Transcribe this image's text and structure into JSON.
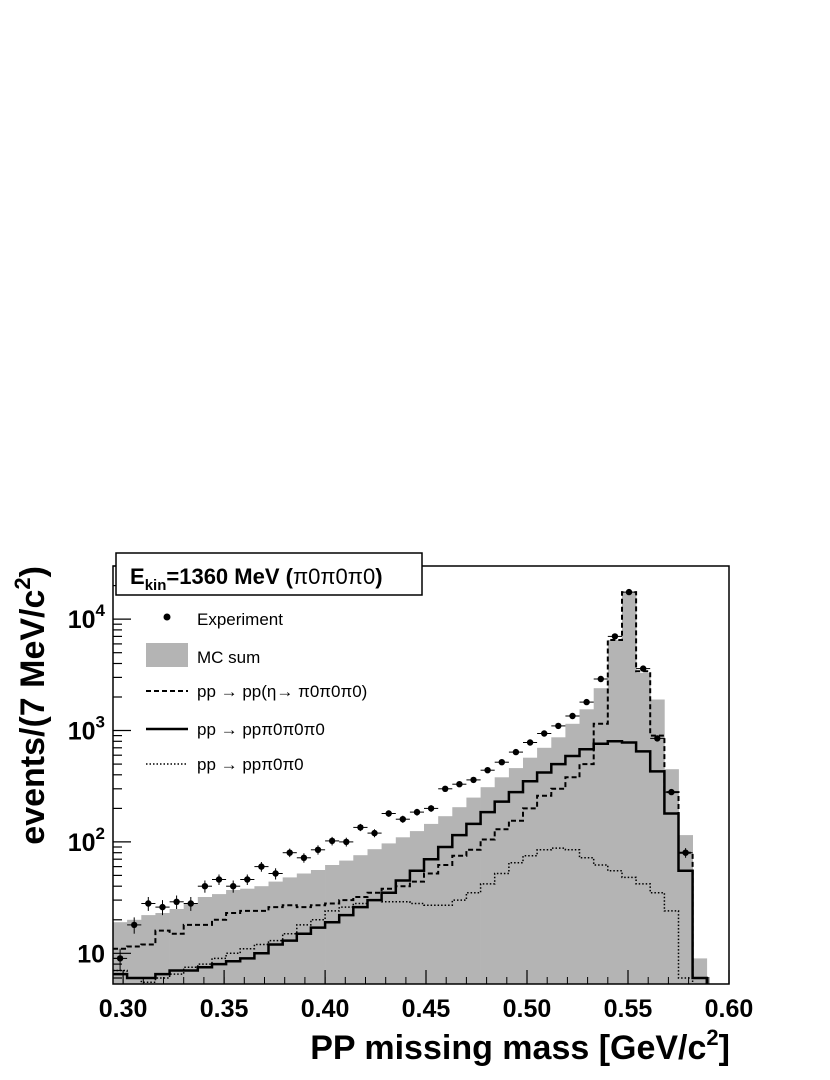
{
  "chart_data": {
    "type": "histogram",
    "title_parts": {
      "main": "E",
      "sub": "kin",
      "rest": "=1360 MeV (",
      "particles": "π0π0π0",
      "close": ")"
    },
    "xlabel_main": "PP missing mass [GeV/c",
    "xlabel_sup": "2",
    "xlabel_close": "]",
    "ylabel_main": "events/(7 MeV/c",
    "ylabel_sup": "2",
    "ylabel_close": ")",
    "xlim": [
      0.295,
      0.6
    ],
    "ylim": [
      5.3,
      30000
    ],
    "yscale": "log",
    "xticks": [
      "0.30",
      "0.35",
      "0.40",
      "0.45",
      "0.50",
      "0.55",
      "0.60"
    ],
    "yticks": [
      {
        "value": 10,
        "base": "10",
        "exp": ""
      },
      {
        "value": 100,
        "base": "10",
        "exp": "2"
      },
      {
        "value": 1000,
        "base": "10",
        "exp": "3"
      },
      {
        "value": 10000,
        "base": "10",
        "exp": "4"
      }
    ],
    "bin_edges": [
      0.295,
      0.302,
      0.309,
      0.316,
      0.323,
      0.33,
      0.337,
      0.344,
      0.351,
      0.358,
      0.365,
      0.372,
      0.379,
      0.386,
      0.393,
      0.4,
      0.407,
      0.414,
      0.421,
      0.428,
      0.435,
      0.442,
      0.449,
      0.456,
      0.463,
      0.47,
      0.477,
      0.484,
      0.491,
      0.498,
      0.505,
      0.512,
      0.519,
      0.526,
      0.533,
      0.54,
      0.547,
      0.554,
      0.561,
      0.568,
      0.575,
      0.582,
      0.589,
      0.596
    ],
    "legend": [
      {
        "label": "Experiment",
        "style": "marker"
      },
      {
        "label": "MC sum",
        "style": "fill"
      },
      {
        "label": "pp → pp(η→ π0π0π0)",
        "style": "dashed"
      },
      {
        "label": "pp → ppπ0π0π0",
        "style": "solid"
      },
      {
        "label": "pp → ppπ0π0",
        "style": "dotted"
      }
    ],
    "series": [
      {
        "name": "MC sum",
        "style": "fill",
        "color": "#b4b4b4",
        "values": [
          19,
          20,
          22,
          23,
          25,
          28,
          32,
          34,
          37,
          38,
          40,
          44,
          48,
          52,
          56,
          62,
          68,
          76,
          86,
          97,
          110,
          125,
          145,
          170,
          205,
          250,
          310,
          380,
          460,
          570,
          700,
          870,
          1150,
          1550,
          2400,
          6500,
          17500,
          3300,
          1900,
          450,
          115,
          9,
          0
        ]
      },
      {
        "name": "pp → pp(η→ π0π0π0)",
        "style": "dashed",
        "color": "#000000",
        "values": [
          11,
          11.5,
          12,
          16,
          15,
          18,
          18,
          20,
          23,
          24,
          24,
          26,
          27,
          26,
          27,
          28,
          30,
          32,
          35,
          38,
          40,
          44,
          52,
          62,
          75,
          85,
          105,
          130,
          155,
          200,
          260,
          300,
          380,
          500,
          1150,
          6500,
          17500,
          3400,
          900,
          280,
          80,
          6,
          0
        ]
      },
      {
        "name": "pp → ppπ0π0π0",
        "style": "solid",
        "color": "#000000",
        "values": [
          6.5,
          6,
          6,
          6.5,
          7,
          7,
          7.5,
          8,
          8.5,
          9,
          10,
          12,
          13,
          15,
          17,
          19,
          22,
          26,
          30,
          35,
          45,
          55,
          70,
          90,
          115,
          145,
          185,
          230,
          280,
          350,
          420,
          500,
          590,
          680,
          760,
          800,
          780,
          650,
          430,
          180,
          55,
          6,
          0
        ]
      },
      {
        "name": "pp → ppπ0π0",
        "style": "dotted",
        "color": "#000000",
        "values": [
          7,
          6,
          5.5,
          6,
          6.5,
          7.5,
          8,
          9,
          10,
          11,
          12,
          13,
          15,
          18,
          20,
          24,
          26,
          28,
          30,
          29,
          29,
          28,
          27,
          27,
          30,
          35,
          42,
          52,
          65,
          75,
          85,
          88,
          85,
          72,
          62,
          55,
          48,
          42,
          35,
          24,
          6,
          0,
          0
        ]
      }
    ],
    "points": {
      "name": "Experiment",
      "x": [
        0.2985,
        0.3055,
        0.3125,
        0.3195,
        0.3265,
        0.3335,
        0.3405,
        0.3475,
        0.3545,
        0.3615,
        0.3685,
        0.3755,
        0.3825,
        0.3895,
        0.3965,
        0.4035,
        0.4105,
        0.4175,
        0.4245,
        0.4315,
        0.4385,
        0.4455,
        0.4525,
        0.4595,
        0.4665,
        0.4735,
        0.4805,
        0.4875,
        0.4945,
        0.5015,
        0.5085,
        0.5155,
        0.5225,
        0.5295,
        0.5365,
        0.5435,
        0.5505,
        0.5575,
        0.5645,
        0.5715,
        0.5785
      ],
      "y": [
        9,
        18,
        28,
        26,
        29,
        28,
        40,
        46,
        40,
        46,
        60,
        52,
        80,
        72,
        85,
        102,
        100,
        135,
        120,
        180,
        160,
        185,
        200,
        300,
        330,
        360,
        440,
        520,
        640,
        780,
        940,
        1100,
        1350,
        1800,
        2900,
        7000,
        17500,
        3600,
        850,
        280,
        80
      ],
      "err": [
        2,
        3,
        4,
        4,
        4,
        4,
        5,
        5,
        5,
        5,
        6,
        6,
        7,
        7,
        8,
        9,
        9,
        10,
        10,
        12,
        12,
        13,
        14,
        16,
        17,
        18,
        20,
        22,
        24,
        27,
        30,
        32,
        35,
        40,
        50,
        80,
        130,
        60,
        28,
        16,
        8
      ]
    }
  }
}
